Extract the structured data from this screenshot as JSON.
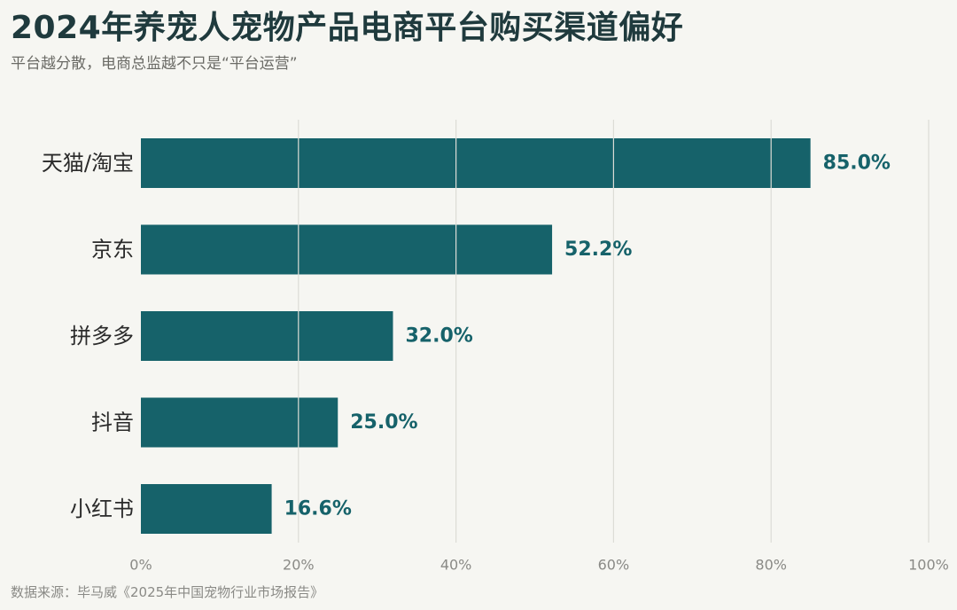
{
  "title": "2024年养宠人宠物产品电商平台购买渠道偏好",
  "subtitle": "平台越分散，电商总监越不只是“平台运营”",
  "source": "数据来源：毕马威《2025年中国宠物行业市场报告》",
  "colors": {
    "bar": "#16626a",
    "label": "#16626a",
    "grid": "#dcdcd6",
    "background": "#f6f6f2"
  },
  "chart_data": {
    "type": "bar",
    "orientation": "horizontal",
    "categories": [
      "天猫/淘宝",
      "京东",
      "拼多多",
      "抖音",
      "小红书"
    ],
    "values": [
      85.0,
      52.2,
      32.0,
      25.0,
      16.6
    ],
    "value_labels": [
      "85.0%",
      "52.2%",
      "32.0%",
      "25.0%",
      "16.6%"
    ],
    "xlim": [
      0,
      100
    ],
    "x_ticks": [
      0,
      20,
      40,
      60,
      80,
      100
    ],
    "x_tick_labels": [
      "0%",
      "20%",
      "40%",
      "60%",
      "80%",
      "100%"
    ],
    "grid": true,
    "legend": "none"
  }
}
